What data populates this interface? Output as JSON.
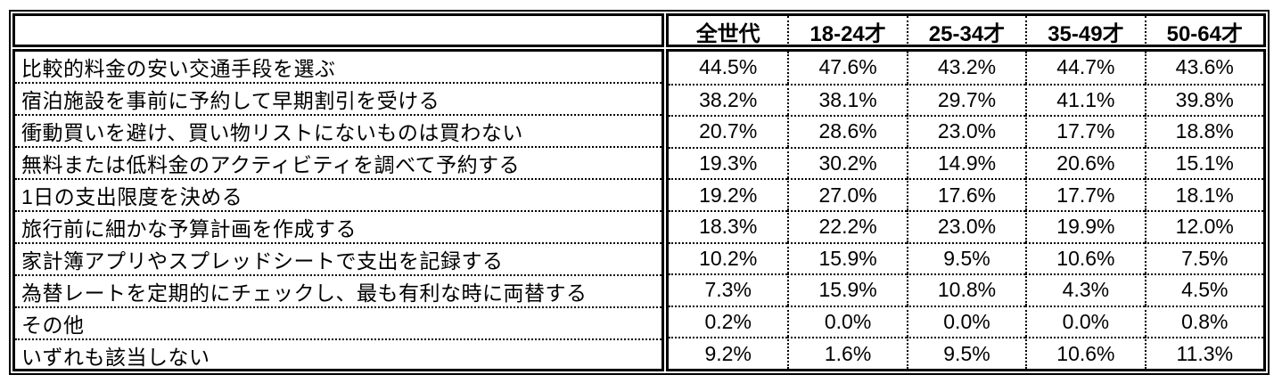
{
  "table": {
    "corner_label": "",
    "columns": [
      "全世代",
      "18-24才",
      "25-34才",
      "35-49才",
      "50-64才"
    ],
    "rows": [
      {
        "label": "比較的料金の安い交通手段を選ぶ",
        "values": [
          "44.5%",
          "47.6%",
          "43.2%",
          "44.7%",
          "43.6%"
        ]
      },
      {
        "label": "宿泊施設を事前に予約して早期割引を受ける",
        "values": [
          "38.2%",
          "38.1%",
          "29.7%",
          "41.1%",
          "39.8%"
        ]
      },
      {
        "label": "衝動買いを避け、買い物リストにないものは買わない",
        "values": [
          "20.7%",
          "28.6%",
          "23.0%",
          "17.7%",
          "18.8%"
        ]
      },
      {
        "label": "無料または低料金のアクティビティを調べて予約する",
        "values": [
          "19.3%",
          "30.2%",
          "14.9%",
          "20.6%",
          "15.1%"
        ]
      },
      {
        "label": "1日の支出限度を決める",
        "values": [
          "19.2%",
          "27.0%",
          "17.6%",
          "17.7%",
          "18.1%"
        ]
      },
      {
        "label": "旅行前に細かな予算計画を作成する",
        "values": [
          "18.3%",
          "22.2%",
          "23.0%",
          "19.9%",
          "12.0%"
        ]
      },
      {
        "label": "家計簿アプリやスプレッドシートで支出を記録する",
        "values": [
          "10.2%",
          "15.9%",
          "9.5%",
          "10.6%",
          "7.5%"
        ]
      },
      {
        "label": "為替レートを定期的にチェックし、最も有利な時に両替する",
        "values": [
          "7.3%",
          "15.9%",
          "10.8%",
          "4.3%",
          "4.5%"
        ]
      },
      {
        "label": "その他",
        "values": [
          "0.2%",
          "0.0%",
          "0.0%",
          "0.0%",
          "0.8%"
        ]
      },
      {
        "label": "いずれも該当しない",
        "values": [
          "9.2%",
          "1.6%",
          "9.5%",
          "10.6%",
          "11.3%"
        ]
      }
    ],
    "border_color": "#000000",
    "background_color": "#ffffff",
    "text_color": "#000000"
  },
  "chart_data": {
    "type": "table",
    "title": "",
    "columns": [
      "全世代",
      "18-24才",
      "25-34才",
      "35-49才",
      "50-64才"
    ],
    "row_labels": [
      "比較的料金の安い交通手段を選ぶ",
      "宿泊施設を事前に予約して早期割引を受ける",
      "衝動買いを避け、買い物リストにないものは買わない",
      "無料または低料金のアクティビティを調べて予約する",
      "1日の支出限度を決める",
      "旅行前に細かな予算計画を作成する",
      "家計簿アプリやスプレッドシートで支出を記録する",
      "為替レートを定期的にチェックし、最も有利な時に両替する",
      "その他",
      "いずれも該当しない"
    ],
    "values_percent": [
      [
        44.5,
        47.6,
        43.2,
        44.7,
        43.6
      ],
      [
        38.2,
        38.1,
        29.7,
        41.1,
        39.8
      ],
      [
        20.7,
        28.6,
        23.0,
        17.7,
        18.8
      ],
      [
        19.3,
        30.2,
        14.9,
        20.6,
        15.1
      ],
      [
        19.2,
        27.0,
        17.6,
        17.7,
        18.1
      ],
      [
        18.3,
        22.2,
        23.0,
        19.9,
        12.0
      ],
      [
        10.2,
        15.9,
        9.5,
        10.6,
        7.5
      ],
      [
        7.3,
        15.9,
        10.8,
        4.3,
        4.5
      ],
      [
        0.2,
        0.0,
        0.0,
        0.0,
        0.8
      ],
      [
        9.2,
        1.6,
        9.5,
        10.6,
        11.3
      ]
    ],
    "unit": "%"
  }
}
